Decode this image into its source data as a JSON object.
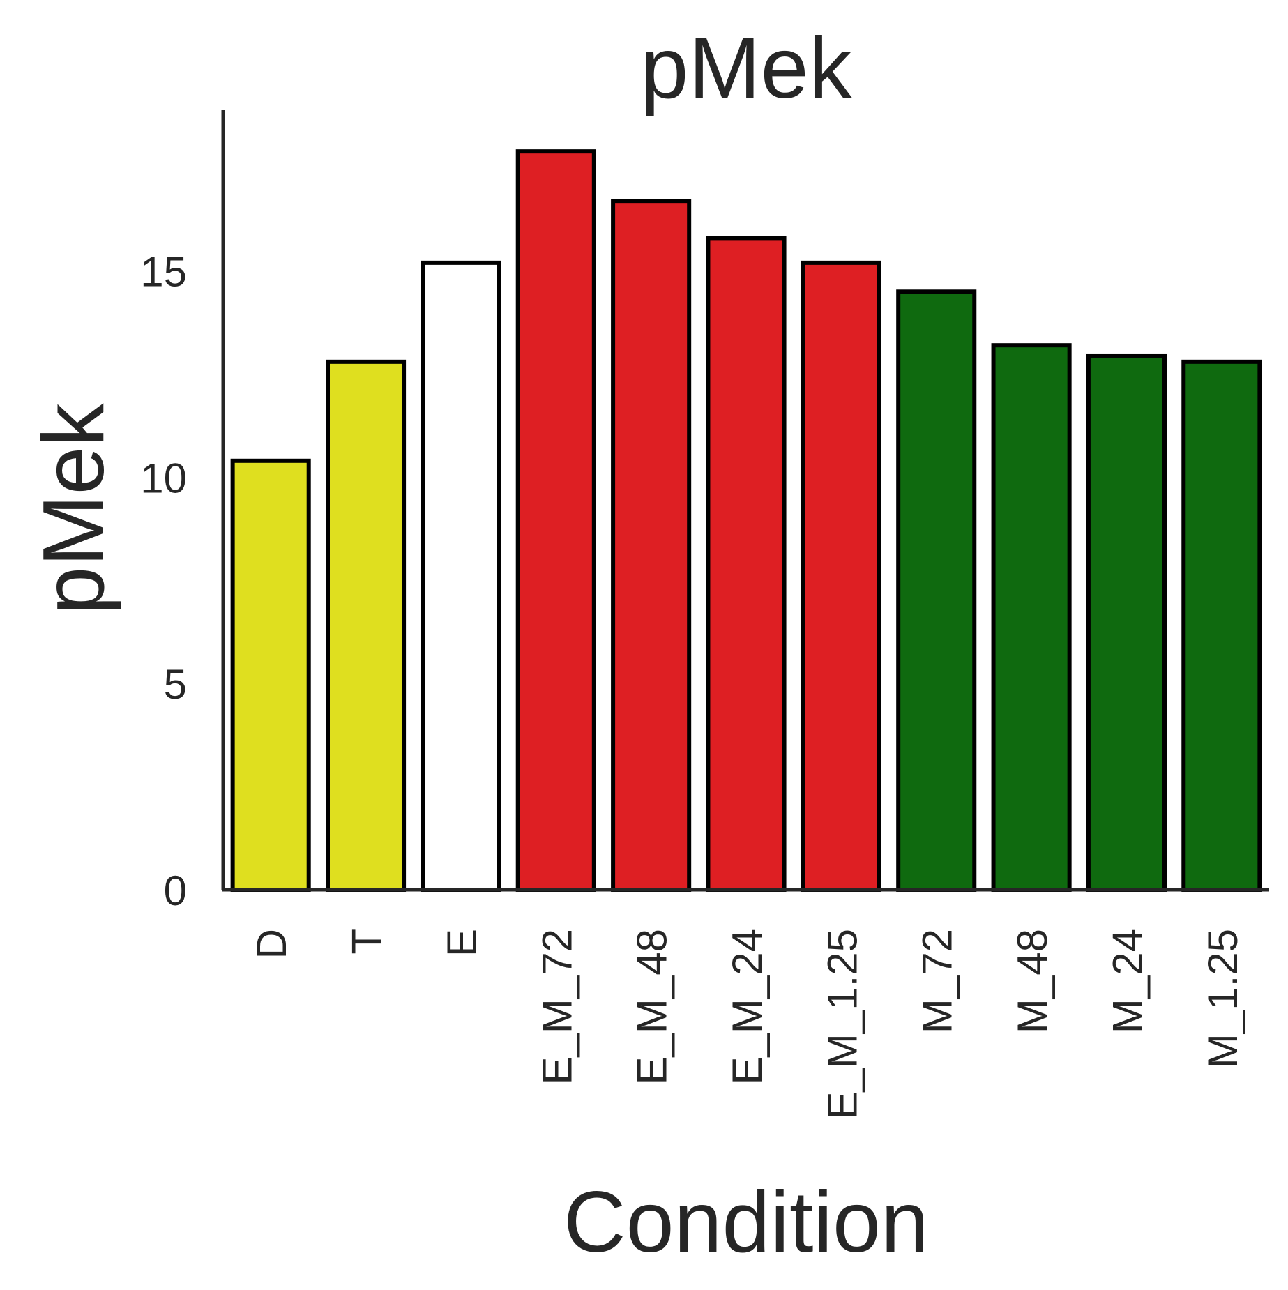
{
  "chart_data": {
    "type": "bar",
    "title": "pMek",
    "xlabel": "Condition",
    "ylabel": "pMek",
    "categories": [
      "D",
      "T",
      "E",
      "E_M_72",
      "E_M_48",
      "E_M_24",
      "E_M_1.25",
      "M_72",
      "M_48",
      "M_24",
      "M_1.25"
    ],
    "values": [
      10.4,
      12.8,
      15.2,
      17.9,
      16.7,
      15.8,
      15.2,
      14.5,
      13.2,
      12.95,
      12.8
    ],
    "colors": [
      "#dfdf1f",
      "#dfdf1f",
      "#ffffff",
      "#de1f23",
      "#de1f23",
      "#de1f23",
      "#de1f23",
      "#0f6a0f",
      "#0f6a0f",
      "#0f6a0f",
      "#0f6a0f"
    ],
    "yticks": [
      "0",
      "5",
      "10",
      "15"
    ],
    "ylim": [
      0,
      18.9
    ],
    "grid": false,
    "legend": "none"
  }
}
